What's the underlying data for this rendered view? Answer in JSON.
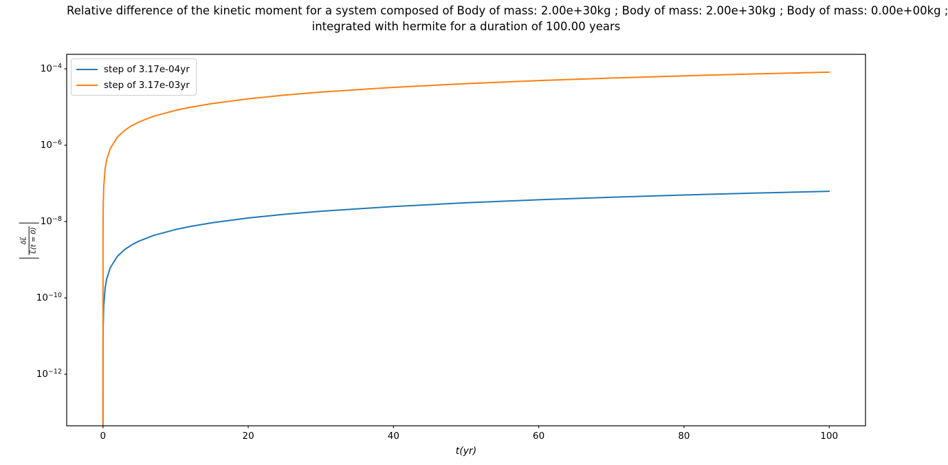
{
  "title": {
    "line1": "Relative difference of the kinetic moment for a system composed of Body of mass: 2.00e+30kg ; Body of mass: 2.00e+30kg ; Body of mass: 0.00e+00kg ;",
    "line2": "integrated with hermite for a duration of 100.00 years"
  },
  "chart_data": {
    "type": "line",
    "title": "Relative difference of the kinetic moment for a system composed of Body of mass: 2.00e+30kg ; Body of mass: 2.00e+30kg ; Body of mass: 0.00e+00kg ; integrated with hermite for a duration of 100.00 years",
    "xlabel": "t(yr)",
    "ylabel": "|δL⃗ / L⃗(t = 0)|",
    "ylabel_parts": {
      "numerator": "δL⃗",
      "denominator": "L⃗(t = 0)"
    },
    "x_ticks": [
      0,
      20,
      40,
      60,
      80,
      100
    ],
    "y_tick_exponents": [
      -4,
      -6,
      -8,
      -10,
      -12
    ],
    "xlim": [
      -5,
      105
    ],
    "ylim_log10": [
      -13.35,
      -3.62
    ],
    "grid": false,
    "legend_position": "upper left",
    "background": "#ffffff",
    "series": [
      {
        "name": "step of 3.17e-04yr",
        "color": "#1f77b4",
        "x": [
          0,
          0.000317,
          0.001,
          0.003,
          0.01,
          0.03,
          0.1,
          0.3,
          0.5,
          1,
          2,
          3,
          4,
          5,
          7,
          10,
          12,
          15,
          20,
          25,
          30,
          40,
          50,
          60,
          70,
          80,
          90,
          100
        ],
        "y": [
          0,
          1.97e-13,
          6.2e-13,
          1.86e-12,
          6.2e-12,
          1.86e-11,
          6.2e-11,
          1.86e-10,
          3.1e-10,
          6.2e-10,
          1.24e-09,
          1.86e-09,
          2.48e-09,
          3.1e-09,
          4.34e-09,
          6.2e-09,
          7.44e-09,
          9.3e-09,
          1.24e-08,
          1.55e-08,
          1.86e-08,
          2.48e-08,
          3.1e-08,
          3.72e-08,
          4.34e-08,
          4.96e-08,
          5.58e-08,
          6.2e-08
        ]
      },
      {
        "name": "step of 3.17e-03yr",
        "color": "#ff7f0e",
        "x": [
          0,
          0.00317,
          0.01,
          0.03,
          0.1,
          0.3,
          0.5,
          1,
          2,
          3,
          4,
          5,
          7,
          10,
          12,
          15,
          20,
          25,
          30,
          40,
          50,
          60,
          70,
          80,
          90,
          100
        ],
        "y": [
          0,
          2.6e-09,
          8.2e-09,
          2.46e-08,
          8.2e-08,
          2.46e-07,
          4.1e-07,
          8.2e-07,
          1.64e-06,
          2.46e-06,
          3.28e-06,
          4.1e-06,
          5.74e-06,
          8.2e-06,
          9.84e-06,
          1.23e-05,
          1.64e-05,
          2.05e-05,
          2.46e-05,
          3.28e-05,
          4.1e-05,
          4.92e-05,
          5.74e-05,
          6.56e-05,
          7.38e-05,
          8.2e-05
        ]
      }
    ]
  }
}
